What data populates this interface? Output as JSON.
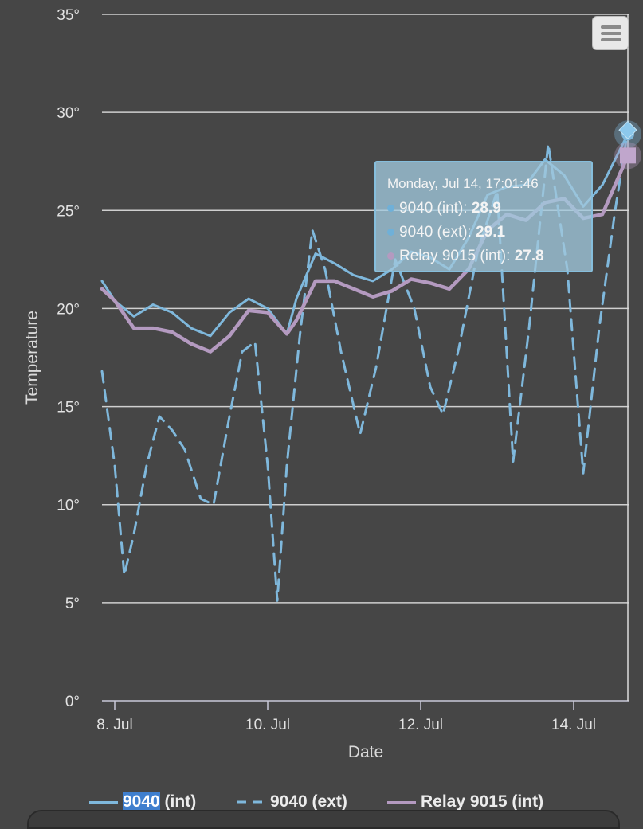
{
  "colors": {
    "background": "#464646",
    "grid": "#cfcfcf",
    "int_series": "#7fb8dc",
    "ext_series": "#7fb8dc",
    "relay_series": "#b49ac0",
    "tooltip_bg": "#a0c8dc",
    "crosshair": "#dcdcdc"
  },
  "chart_data": {
    "type": "line",
    "xlabel": "Date",
    "ylabel": "Temperature",
    "ylim": [
      0,
      35
    ],
    "xlim": [
      "2025-07-07 20:00",
      "2025-07-14 17:30"
    ],
    "y_ticks": [
      "0°",
      "5°",
      "10°",
      "15°",
      "20°",
      "25°",
      "30°",
      "35°"
    ],
    "x_ticks": [
      {
        "label": "8. Jul",
        "date": "2025-07-08 00:00"
      },
      {
        "label": "10. Jul",
        "date": "2025-07-10 00:00"
      },
      {
        "label": "12. Jul",
        "date": "2025-07-12 00:00"
      },
      {
        "label": "14. Jul",
        "date": "2025-07-14 00:00"
      }
    ],
    "grid": true,
    "legend": "bottom",
    "series": [
      {
        "name": "9040 (int)",
        "style": "solid",
        "points": [
          [
            "2025-07-07 20:00",
            21.4
          ],
          [
            "2025-07-08 00:00",
            20.4
          ],
          [
            "2025-07-08 06:00",
            19.6
          ],
          [
            "2025-07-08 12:00",
            20.2
          ],
          [
            "2025-07-08 18:00",
            19.8
          ],
          [
            "2025-07-09 00:00",
            19.0
          ],
          [
            "2025-07-09 06:00",
            18.6
          ],
          [
            "2025-07-09 12:00",
            19.8
          ],
          [
            "2025-07-09 18:00",
            20.5
          ],
          [
            "2025-07-10 00:00",
            20.0
          ],
          [
            "2025-07-10 06:00",
            18.7
          ],
          [
            "2025-07-10 09:00",
            20.5
          ],
          [
            "2025-07-10 15:00",
            22.8
          ],
          [
            "2025-07-10 21:00",
            22.3
          ],
          [
            "2025-07-11 03:00",
            21.7
          ],
          [
            "2025-07-11 09:00",
            21.4
          ],
          [
            "2025-07-11 15:00",
            22.0
          ],
          [
            "2025-07-11 21:00",
            22.9
          ],
          [
            "2025-07-12 03:00",
            22.6
          ],
          [
            "2025-07-12 09:00",
            22.0
          ],
          [
            "2025-07-12 15:00",
            23.6
          ],
          [
            "2025-07-12 21:00",
            25.8
          ],
          [
            "2025-07-13 03:00",
            26.2
          ],
          [
            "2025-07-13 09:00",
            26.3
          ],
          [
            "2025-07-13 15:00",
            27.6
          ],
          [
            "2025-07-13 21:00",
            26.8
          ],
          [
            "2025-07-14 03:00",
            25.2
          ],
          [
            "2025-07-14 09:00",
            26.3
          ],
          [
            "2025-07-14 17:00",
            28.9
          ]
        ]
      },
      {
        "name": "9040 (ext)",
        "style": "dash",
        "points": [
          [
            "2025-07-07 20:00",
            16.8
          ],
          [
            "2025-07-08 00:00",
            12.0
          ],
          [
            "2025-07-08 03:00",
            6.4
          ],
          [
            "2025-07-08 06:00",
            8.5
          ],
          [
            "2025-07-08 10:00",
            12.0
          ],
          [
            "2025-07-08 14:00",
            14.5
          ],
          [
            "2025-07-08 18:00",
            13.8
          ],
          [
            "2025-07-08 22:00",
            12.8
          ],
          [
            "2025-07-09 03:00",
            10.3
          ],
          [
            "2025-07-09 07:00",
            10.0
          ],
          [
            "2025-07-09 12:00",
            14.5
          ],
          [
            "2025-07-09 16:00",
            17.8
          ],
          [
            "2025-07-09 20:00",
            18.3
          ],
          [
            "2025-07-10 00:00",
            12.0
          ],
          [
            "2025-07-10 03:00",
            5.1
          ],
          [
            "2025-07-10 06:00",
            12.0
          ],
          [
            "2025-07-10 10:00",
            18.5
          ],
          [
            "2025-07-10 14:00",
            24.0
          ],
          [
            "2025-07-10 18:00",
            22.0
          ],
          [
            "2025-07-10 23:00",
            17.8
          ],
          [
            "2025-07-11 05:00",
            13.6
          ],
          [
            "2025-07-11 10:00",
            17.0
          ],
          [
            "2025-07-11 16:00",
            22.5
          ],
          [
            "2025-07-11 22:00",
            20.0
          ],
          [
            "2025-07-12 03:00",
            16.0
          ],
          [
            "2025-07-12 07:00",
            14.6
          ],
          [
            "2025-07-12 12:00",
            18.0
          ],
          [
            "2025-07-12 18:00",
            23.0
          ],
          [
            "2025-07-13 00:00",
            26.0
          ],
          [
            "2025-07-13 05:00",
            12.2
          ],
          [
            "2025-07-13 10:00",
            19.0
          ],
          [
            "2025-07-13 16:00",
            28.4
          ],
          [
            "2025-07-13 22:00",
            22.0
          ],
          [
            "2025-07-14 03:00",
            11.6
          ],
          [
            "2025-07-14 08:00",
            19.0
          ],
          [
            "2025-07-14 13:00",
            25.0
          ],
          [
            "2025-07-14 17:00",
            29.1
          ]
        ]
      },
      {
        "name": "Relay 9015 (int)",
        "style": "solid",
        "points": [
          [
            "2025-07-07 20:00",
            21.0
          ],
          [
            "2025-07-08 00:00",
            20.4
          ],
          [
            "2025-07-08 06:00",
            19.0
          ],
          [
            "2025-07-08 12:00",
            19.0
          ],
          [
            "2025-07-08 18:00",
            18.8
          ],
          [
            "2025-07-09 00:00",
            18.2
          ],
          [
            "2025-07-09 06:00",
            17.8
          ],
          [
            "2025-07-09 12:00",
            18.6
          ],
          [
            "2025-07-09 18:00",
            19.9
          ],
          [
            "2025-07-10 00:00",
            19.8
          ],
          [
            "2025-07-10 06:00",
            18.7
          ],
          [
            "2025-07-10 09:00",
            19.4
          ],
          [
            "2025-07-10 15:00",
            21.4
          ],
          [
            "2025-07-10 21:00",
            21.4
          ],
          [
            "2025-07-11 03:00",
            21.0
          ],
          [
            "2025-07-11 09:00",
            20.6
          ],
          [
            "2025-07-11 15:00",
            20.9
          ],
          [
            "2025-07-11 21:00",
            21.5
          ],
          [
            "2025-07-12 03:00",
            21.3
          ],
          [
            "2025-07-12 09:00",
            21.0
          ],
          [
            "2025-07-12 15:00",
            22.0
          ],
          [
            "2025-07-12 21:00",
            24.0
          ],
          [
            "2025-07-13 03:00",
            24.8
          ],
          [
            "2025-07-13 09:00",
            24.5
          ],
          [
            "2025-07-13 15:00",
            25.4
          ],
          [
            "2025-07-13 21:00",
            25.6
          ],
          [
            "2025-07-14 03:00",
            24.6
          ],
          [
            "2025-07-14 09:00",
            24.8
          ],
          [
            "2025-07-14 17:00",
            27.8
          ]
        ]
      }
    ],
    "tooltip": {
      "header": "Monday, Jul 14, 17:01:46",
      "rows": [
        {
          "label": "9040 (int): ",
          "value": "28.9",
          "color": "#6fb0d8"
        },
        {
          "label": "9040 (ext): ",
          "value": "29.1",
          "color": "#6fb0d8"
        },
        {
          "label": "Relay 9015 (int): ",
          "value": "27.8",
          "color": "#b49ac0"
        }
      ],
      "crosshair_date": "2025-07-14 17:00"
    }
  },
  "legend": {
    "items": [
      {
        "name_highlight": "9040",
        "name_rest": " (int)"
      },
      {
        "name": "9040 (ext)"
      },
      {
        "name": "Relay 9015 (int)"
      }
    ]
  },
  "menu": {
    "icon": "hamburger-menu-icon"
  }
}
